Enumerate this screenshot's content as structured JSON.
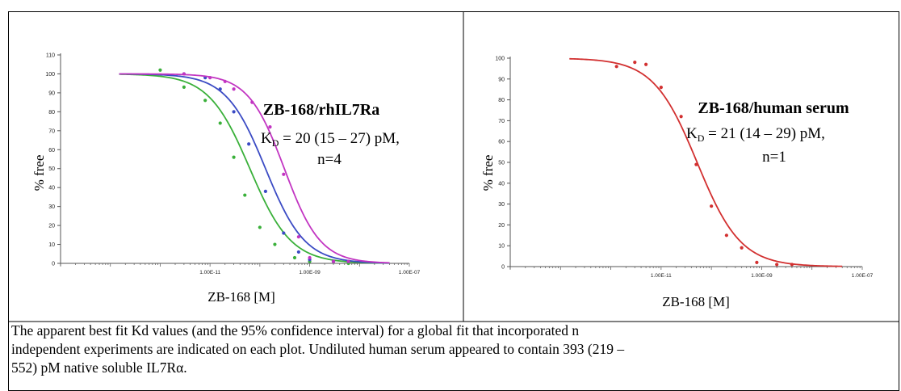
{
  "chart_data": [
    {
      "type": "line",
      "xscale": "log",
      "xlim": [
        1e-14,
        1e-07
      ],
      "ylim": [
        0,
        110
      ],
      "yticks": [
        0,
        10,
        20,
        30,
        40,
        50,
        60,
        70,
        80,
        90,
        100,
        110
      ],
      "yticklabels": [
        "0",
        "10",
        "20",
        "30",
        "40",
        "50",
        "60",
        "70",
        "80",
        "90",
        "100",
        "110"
      ],
      "xticks": [
        1e-11,
        1e-09,
        1e-07
      ],
      "xticklabels": [
        "1.00E-11",
        "1.00E-09",
        "1.00E-07"
      ],
      "xlabel": "ZB-168 [M]",
      "ylabel": "% free",
      "annotation": {
        "title": "ZB-168/rhIL7Ra",
        "kd_prefix": "K",
        "kd_sub": "D",
        "kd_value": " = 20 (15 – 27) pM,",
        "n": "n=4"
      },
      "series": [
        {
          "color": "#3ab03a",
          "ec50": 6.3e-11,
          "hill": 1.05,
          "x": [
            1e-12,
            3e-12,
            8e-12,
            1.6e-11,
            3e-11,
            5e-11,
            1e-10,
            2e-10,
            5e-10,
            1e-09,
            3e-09,
            6e-09
          ],
          "y": [
            102,
            93,
            86,
            74,
            56,
            36,
            19,
            10,
            3,
            1,
            1,
            0
          ]
        },
        {
          "color": "#3b4bc4",
          "ec50": 1.3e-10,
          "hill": 1.1,
          "x": [
            3e-12,
            8e-12,
            1.6e-11,
            3e-11,
            6e-11,
            1.3e-10,
            3e-10,
            6e-10,
            1e-09,
            3e-09,
            6e-09
          ],
          "y": [
            100,
            98,
            92,
            80,
            63,
            38,
            16,
            6,
            2,
            1,
            1
          ]
        },
        {
          "color": "#c235c2",
          "ec50": 3.1e-10,
          "hill": 1.2,
          "x": [
            3e-12,
            1e-11,
            2e-11,
            3e-11,
            7e-11,
            1.6e-10,
            3e-10,
            6e-10,
            1e-09,
            3e-09,
            6e-09
          ],
          "y": [
            100,
            98,
            96,
            92,
            85,
            72,
            47,
            14,
            3,
            1,
            1
          ]
        }
      ]
    },
    {
      "type": "line",
      "xscale": "log",
      "xlim": [
        1e-14,
        1e-07
      ],
      "ylim": [
        0,
        100
      ],
      "yticks": [
        0,
        10,
        20,
        30,
        40,
        50,
        60,
        70,
        80,
        90,
        100
      ],
      "yticklabels": [
        "0",
        "10",
        "20",
        "30",
        "40",
        "50",
        "60",
        "70",
        "80",
        "90",
        "100"
      ],
      "xticks": [
        1e-11,
        1e-09,
        1e-07
      ],
      "xticklabels": [
        "1.00E-11",
        "1.00E-09",
        "1.00E-07"
      ],
      "xlabel": "ZB-168 [M]",
      "ylabel": "% free",
      "annotation": {
        "title": "ZB-168/human serum",
        "kd_prefix": "K",
        "kd_sub": "D",
        "kd_value": " = 21 (14 – 29) pM,",
        "n": "n=1"
      },
      "series": [
        {
          "color": "#d23030",
          "ec50": 5.2e-11,
          "hill": 1.0,
          "x": [
            1.3e-12,
            3e-12,
            5e-12,
            1e-11,
            2.5e-11,
            5e-11,
            1e-10,
            2e-10,
            4e-10,
            8e-10,
            2e-09,
            4e-09
          ],
          "y": [
            96,
            98,
            97,
            86,
            72,
            49,
            29,
            15,
            9,
            2,
            1,
            1
          ]
        }
      ]
    }
  ],
  "caption": {
    "lines": [
      "The apparent best fit Kd values (and the 95% confidence interval) for a global fit that incorporated n",
      "independent experiments are indicated on each plot. Undiluted human serum appeared to contain 393 (219 –",
      "552) pM native soluble IL7Rα."
    ]
  },
  "colors": {
    "frame": "#000000",
    "tick": "#666666",
    "background": "#ffffff"
  }
}
